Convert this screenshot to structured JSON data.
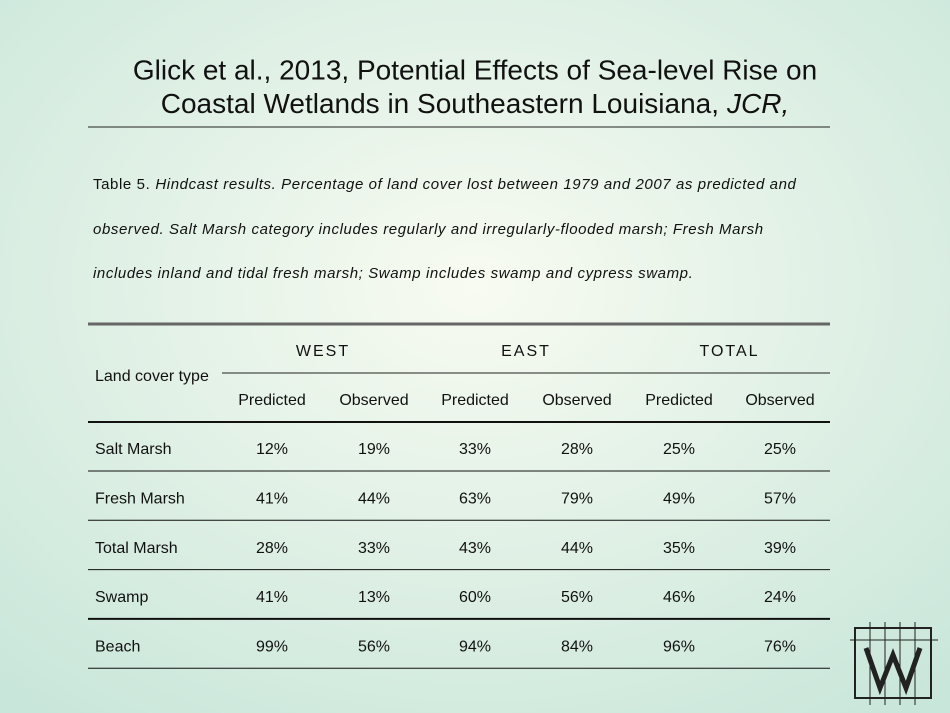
{
  "title": {
    "line1": "Glick et al., 2013, Potential Effects of Sea-level Rise on",
    "line2": "Coastal Wetlands in Southeastern Louisiana,",
    "line2_italic": "JCR,"
  },
  "caption": {
    "label": "Table 5.",
    "lines": [
      "Hindcast results. Percentage of land cover lost between 1979 and 2007 as predicted and",
      "observed. Salt Marsh category includes regularly and irregularly-flooded marsh; Fresh Marsh",
      "includes inland and tidal fresh marsh; Swamp includes swamp and cypress swamp."
    ]
  },
  "table": {
    "row_header": "Land cover type",
    "groups": [
      "WEST",
      "EAST",
      "TOTAL"
    ],
    "subheaders": [
      "Predicted",
      "Observed",
      "Predicted",
      "Observed",
      "Predicted",
      "Observed"
    ],
    "rows": [
      [
        "Salt Marsh",
        "12%",
        "19%",
        "33%",
        "28%",
        "25%",
        "25%"
      ],
      [
        "Fresh Marsh",
        "41%",
        "44%",
        "63%",
        "79%",
        "49%",
        "57%"
      ],
      [
        "Total Marsh",
        "28%",
        "33%",
        "43%",
        "44%",
        "35%",
        "39%"
      ],
      [
        "Swamp",
        "41%",
        "13%",
        "60%",
        "56%",
        "46%",
        "24%"
      ],
      [
        "Beach",
        "99%",
        "56%",
        "94%",
        "84%",
        "96%",
        "76%"
      ]
    ]
  }
}
